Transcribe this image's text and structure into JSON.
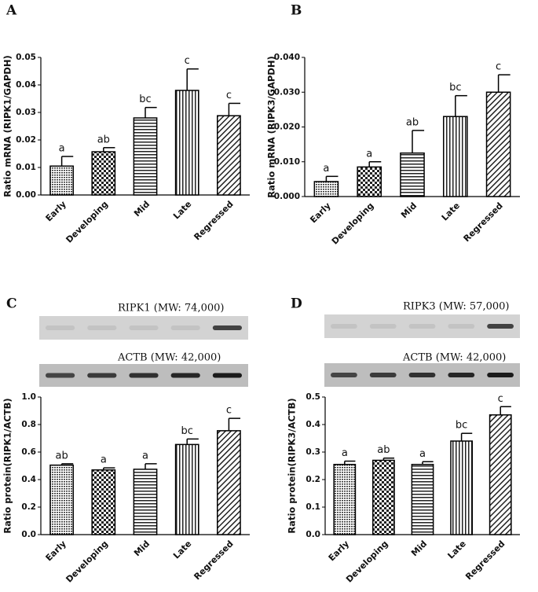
{
  "chart_data": [
    {
      "type": "bar",
      "panel": "A",
      "ylabel": "Ratio mRNA (RIPK1/GAPDH)",
      "categories": [
        "Early",
        "Developing",
        "Mid",
        "Late",
        "Regressed"
      ],
      "values": [
        0.0105,
        0.0157,
        0.028,
        0.038,
        0.0288
      ],
      "errors": [
        0.0035,
        0.0015,
        0.0038,
        0.0078,
        0.0045
      ],
      "annotations": [
        "a",
        "ab",
        "bc",
        "c",
        "c"
      ],
      "ylim": [
        0,
        0.05
      ],
      "yticks": [
        {
          "value": 0,
          "label": "0.00"
        },
        0.01,
        0.02,
        0.03,
        0.04,
        0.05
      ]
    },
    {
      "type": "bar",
      "panel": "B",
      "ylabel": "Ratio mRNA (RIPK3/GAPDH)",
      "categories": [
        "Early",
        "Developing",
        "Mid",
        "Late",
        "Regressed"
      ],
      "values": [
        0.0043,
        0.0085,
        0.0125,
        0.023,
        0.03
      ],
      "errors": [
        0.0015,
        0.0015,
        0.0065,
        0.006,
        0.005
      ],
      "annotations": [
        "a",
        "a",
        "ab",
        "bc",
        "c"
      ],
      "ylim": [
        0,
        0.04
      ],
      "yticks": [
        {
          "value": 0,
          "label": "0.000"
        },
        {
          "value": 0.01,
          "label": "0.010"
        },
        {
          "value": 0.02,
          "label": "0.020"
        },
        {
          "value": 0.03,
          "label": "0.030"
        },
        {
          "value": 0.04,
          "label": "0.040"
        }
      ]
    },
    {
      "type": "bar",
      "panel": "C",
      "ylabel": "Ratio protein(RIPK1/ACTB)",
      "blots": [
        "RIPK1 (MW: 74,000)",
        "ACTB (MW: 42,000)"
      ],
      "categories": [
        "Early",
        "Developing",
        "Mid",
        "Late",
        "Regressed"
      ],
      "values": [
        0.505,
        0.47,
        0.475,
        0.655,
        0.755
      ],
      "errors": [
        0.01,
        0.015,
        0.04,
        0.04,
        0.09
      ],
      "annotations": [
        "ab",
        "a",
        "a",
        "bc",
        "c"
      ],
      "ylim": [
        0,
        1
      ],
      "yticks": [
        {
          "value": 0,
          "label": "0.0"
        },
        0.2,
        0.4,
        0.6,
        0.8,
        {
          "value": 1,
          "label": "1.0"
        }
      ]
    },
    {
      "type": "bar",
      "panel": "D",
      "ylabel": "Ratio protein(RIPK3/ACTB)",
      "blots": [
        "RIPK3 (MW: 57,000)",
        "ACTB (MW: 42,000)"
      ],
      "categories": [
        "Early",
        "Developing",
        "Mid",
        "Late",
        "Regressed"
      ],
      "values": [
        0.255,
        0.27,
        0.255,
        0.34,
        0.435
      ],
      "errors": [
        0.012,
        0.008,
        0.01,
        0.028,
        0.03
      ],
      "annotations": [
        "a",
        "ab",
        "a",
        "bc",
        "c"
      ],
      "ylim": [
        0,
        0.5
      ],
      "yticks": [
        {
          "value": 0,
          "label": "0.0"
        },
        0.1,
        0.2,
        0.3,
        0.4,
        0.5
      ]
    }
  ]
}
